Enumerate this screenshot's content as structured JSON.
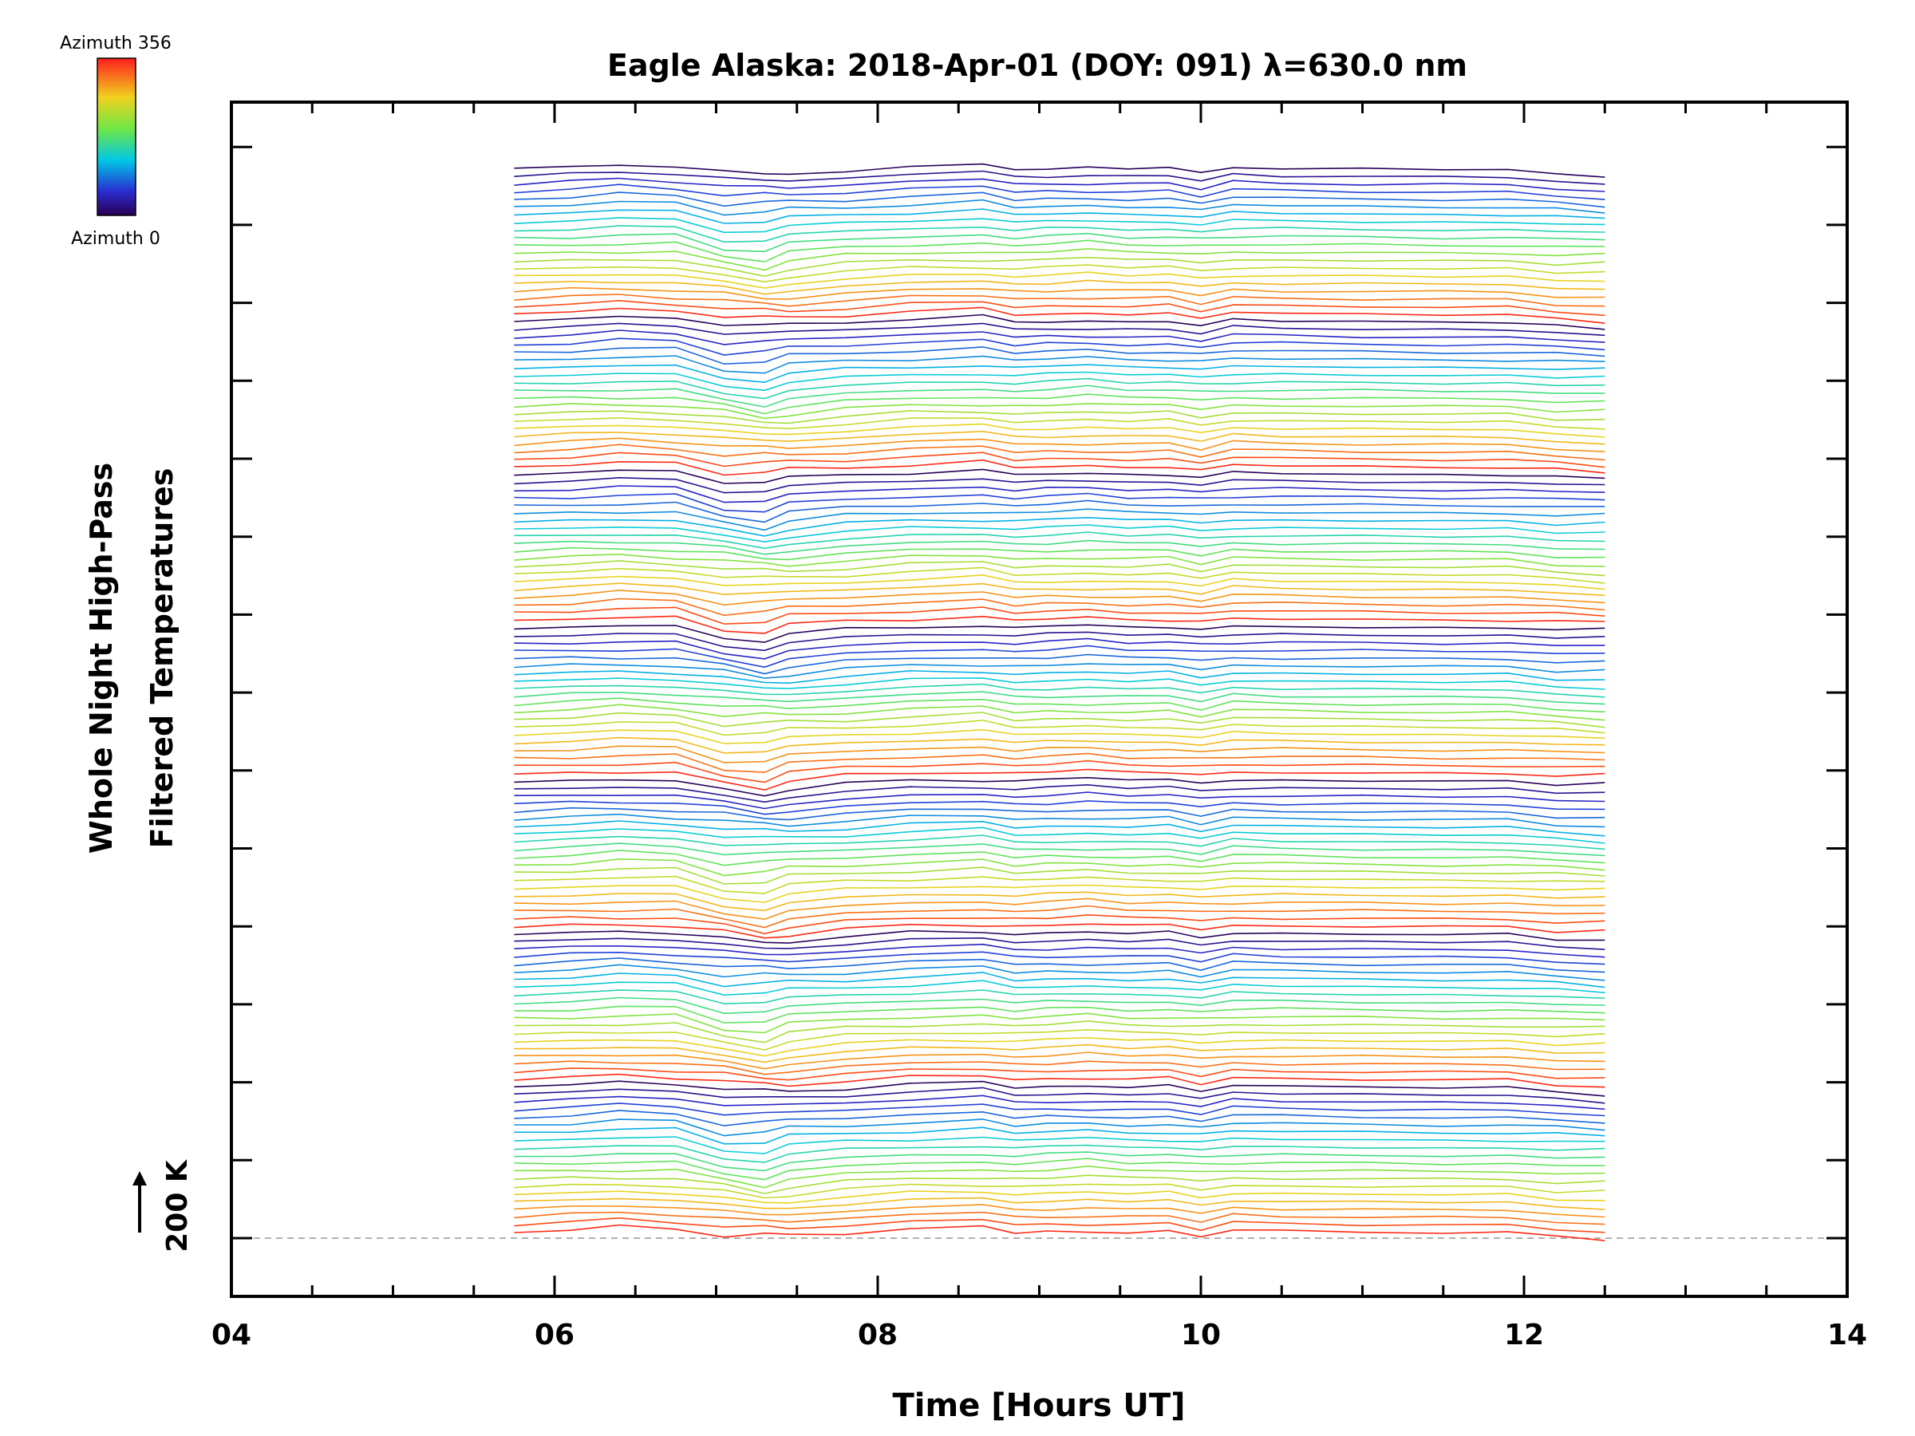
{
  "chart_data": {
    "type": "line",
    "title": "Eagle Alaska: 2018-Apr-01 (DOY: 091) λ=630.0 nm",
    "xlabel": "Time [Hours UT]",
    "ylabel_line1": "Whole Night High-Pass",
    "ylabel_line2": "Filtered Temperatures",
    "xlim": [
      4,
      14
    ],
    "x_tick_labels": [
      "04",
      "06",
      "08",
      "10",
      "12",
      "14"
    ],
    "x_tick_values": [
      4,
      6,
      8,
      10,
      12,
      14
    ],
    "scale_bar_label": "200 K",
    "colorbar": {
      "top_label": "Azimuth 356",
      "bottom_label": "Azimuth 0"
    },
    "series_count": 140,
    "azimuth_cycle_length": 20,
    "times": [
      5.75,
      6.1,
      6.4,
      6.75,
      7.05,
      7.3,
      7.45,
      7.8,
      8.2,
      8.65,
      8.85,
      9.05,
      9.3,
      9.55,
      9.8,
      10.0,
      10.2,
      10.5,
      11.0,
      11.5,
      11.9,
      12.2,
      12.5
    ],
    "mean_profile_K": [
      0,
      -3,
      -6,
      -4,
      10,
      14,
      8,
      2,
      -3,
      -6,
      0,
      -2,
      -4,
      -1,
      -2,
      4,
      -3,
      -2,
      -1,
      0,
      0,
      5,
      7
    ]
  }
}
